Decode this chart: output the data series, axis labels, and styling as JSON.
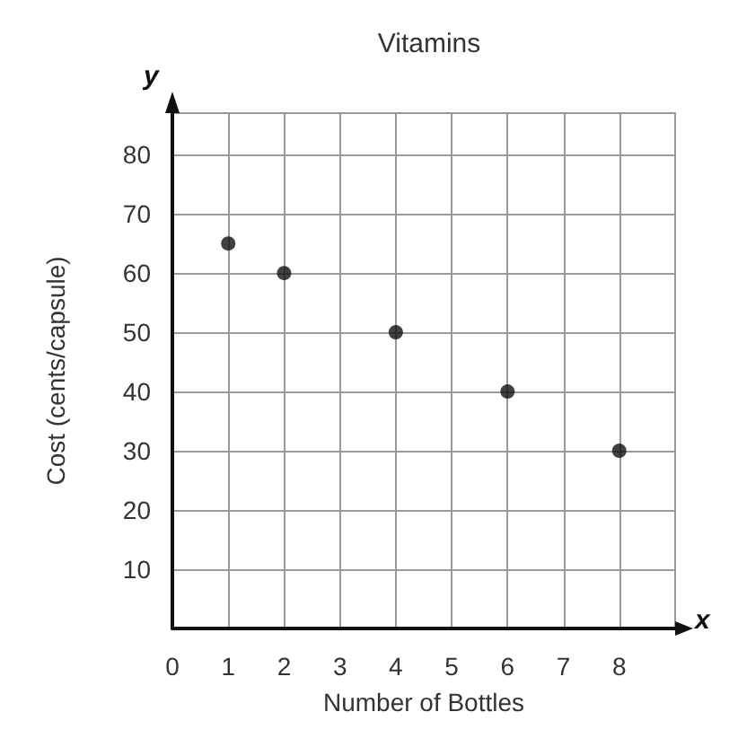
{
  "chart_data": {
    "type": "scatter",
    "title": "Vitamins",
    "xlabel": "Number of Bottles",
    "ylabel": "Cost (cents/capsule)",
    "x": [
      1,
      2,
      4,
      6,
      8
    ],
    "values": [
      65,
      60,
      50,
      40,
      30
    ],
    "color": "#111111",
    "marker": "circle",
    "xlim": [
      0,
      9
    ],
    "ylim": [
      0,
      87
    ],
    "xticks": [
      0,
      1,
      2,
      3,
      4,
      5,
      6,
      7,
      8
    ],
    "yticks": [
      10,
      20,
      30,
      40,
      50,
      60,
      70,
      80
    ],
    "grid": true,
    "annotations": [
      "y",
      "x"
    ]
  }
}
